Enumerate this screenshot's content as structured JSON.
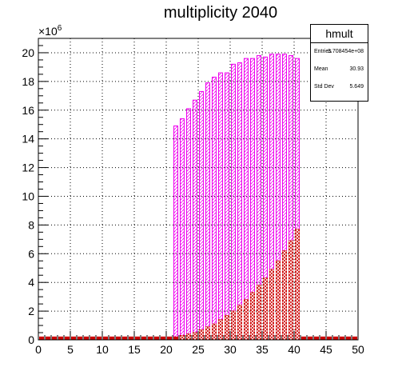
{
  "chart_data": {
    "type": "bar",
    "title": "multiplicity 2040",
    "xlabel": "",
    "ylabel": "",
    "xlim": [
      0,
      50
    ],
    "ylim": [
      0,
      21000000
    ],
    "y_exponent_label": "×10",
    "y_exponent_power": "6",
    "x_ticks": [
      "0",
      "5",
      "10",
      "15",
      "20",
      "25",
      "30",
      "35",
      "40",
      "45",
      "50"
    ],
    "y_ticks": [
      "0",
      "2",
      "4",
      "6",
      "8",
      "10",
      "12",
      "14",
      "16",
      "18",
      "20"
    ],
    "grid": true,
    "legend": "none",
    "bin_width": 1,
    "series": [
      {
        "color": "#ee00ee",
        "x": [
          21,
          22,
          23,
          24,
          25,
          26,
          27,
          28,
          29,
          30,
          31,
          32,
          33,
          34,
          35,
          36,
          37,
          38,
          39,
          40
        ],
        "values": [
          14900000,
          15400000,
          16100000,
          16700000,
          17300000,
          17900000,
          18300000,
          18600000,
          18600000,
          19200000,
          19300000,
          19600000,
          19600000,
          19800000,
          19700000,
          19900000,
          19900000,
          19900000,
          19800000,
          19600000
        ]
      },
      {
        "color": "#cc0000",
        "x": [
          0,
          1,
          2,
          3,
          4,
          5,
          6,
          7,
          8,
          9,
          10,
          11,
          12,
          13,
          14,
          15,
          16,
          17,
          18,
          19,
          20,
          21,
          22,
          23,
          24,
          25,
          26,
          27,
          28,
          29,
          30,
          31,
          32,
          33,
          34,
          35,
          36,
          37,
          38,
          39,
          40,
          41,
          42,
          43,
          44,
          45,
          46,
          47,
          48,
          49
        ],
        "values": [
          200000,
          200000,
          200000,
          200000,
          200000,
          200000,
          200000,
          200000,
          200000,
          200000,
          200000,
          200000,
          200000,
          200000,
          200000,
          200000,
          200000,
          200000,
          200000,
          200000,
          200000,
          200000,
          300000,
          400000,
          500000,
          700000,
          900000,
          1100000,
          1400000,
          1700000,
          2000000,
          2400000,
          2800000,
          3300000,
          3800000,
          4300000,
          4900000,
          5500000,
          6200000,
          6900000,
          7700000,
          200000,
          200000,
          200000,
          200000,
          200000,
          200000,
          200000,
          200000,
          200000
        ]
      }
    ]
  },
  "stats": {
    "title": "hmult",
    "rows": [
      {
        "key": "Entries",
        "value": "3.708454e+08"
      },
      {
        "key": "Mean",
        "value": "30.93"
      },
      {
        "key": "Std Dev",
        "value": "5.649"
      }
    ]
  }
}
